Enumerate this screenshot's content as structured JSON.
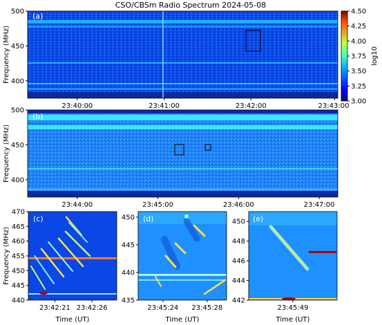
{
  "title": "CSO/CBSm Radio Spectrum 2024-05-08",
  "colors": {
    "background": "#0a3fd8",
    "band": "#1fa9ff",
    "dark_edge": "#0a1a7a",
    "feature": "#ffe04a",
    "box": "#000000"
  },
  "colorbar": {
    "label": "log10",
    "ticks": [
      "4.50",
      "4.25",
      "4.00",
      "3.75",
      "3.50",
      "3.25",
      "3.00"
    ],
    "range": [
      3.0,
      4.5
    ],
    "colormap": "jet"
  },
  "chart_data": [
    {
      "type": "heatmap",
      "panel": "(a)",
      "title": "CSO/CBSm Radio Spectrum 2024-05-08",
      "ylabel": "Frequency (MHz)",
      "xlabel": "",
      "ylim": [
        375,
        500
      ],
      "yticks": [
        "500",
        "450",
        "400"
      ],
      "yticks_values": [
        500,
        450,
        400
      ],
      "xticks": [
        "23:40:00",
        "23:41:00",
        "23:42:00",
        "23:43:00"
      ],
      "x_time_range": [
        "23:39:20",
        "23:43:40"
      ],
      "boxes": [
        {
          "t": "23:42:20",
          "f_low": 440,
          "f_high": 465
        }
      ]
    },
    {
      "type": "heatmap",
      "panel": "(b)",
      "ylabel": "Frequency (MHz)",
      "xlabel": "",
      "ylim": [
        375,
        500
      ],
      "yticks": [
        "500",
        "450",
        "400"
      ],
      "yticks_values": [
        500,
        450,
        400
      ],
      "xticks": [
        "23:44:00",
        "23:45:00",
        "23:46:00",
        "23:47:00"
      ],
      "x_time_range": [
        "23:43:20",
        "23:47:40"
      ],
      "boxes": [
        {
          "t": "23:45:24",
          "f_low": 435,
          "f_high": 450
        },
        {
          "t": "23:45:48",
          "f_low": 442,
          "f_high": 450
        }
      ]
    },
    {
      "type": "heatmap",
      "panel": "(c)",
      "ylabel": "Frequency (MHz)",
      "xlabel": "Time (UT)",
      "ylim": [
        440,
        470
      ],
      "yticks": [
        "470",
        "465",
        "460",
        "455",
        "450",
        "445",
        "440"
      ],
      "yticks_values": [
        470,
        465,
        460,
        455,
        450,
        445,
        440
      ],
      "xticks": [
        "23:42:21",
        "23:42:26"
      ]
    },
    {
      "type": "heatmap",
      "panel": "(d)",
      "ylabel": "",
      "xlabel": "Time (UT)",
      "ylim": [
        435,
        451
      ],
      "yticks": [
        "450",
        "445",
        "440",
        "435"
      ],
      "yticks_values": [
        450,
        445,
        440,
        435
      ],
      "xticks": [
        "23:45:24",
        "23:45:28"
      ]
    },
    {
      "type": "heatmap",
      "panel": "(e)",
      "ylabel": "",
      "xlabel": "Time (UT)",
      "ylim": [
        442,
        451
      ],
      "yticks": [
        "450",
        "448",
        "446",
        "444",
        "442"
      ],
      "yticks_values": [
        450,
        448,
        446,
        444,
        442
      ],
      "xticks": [
        "23:45:49"
      ]
    }
  ]
}
